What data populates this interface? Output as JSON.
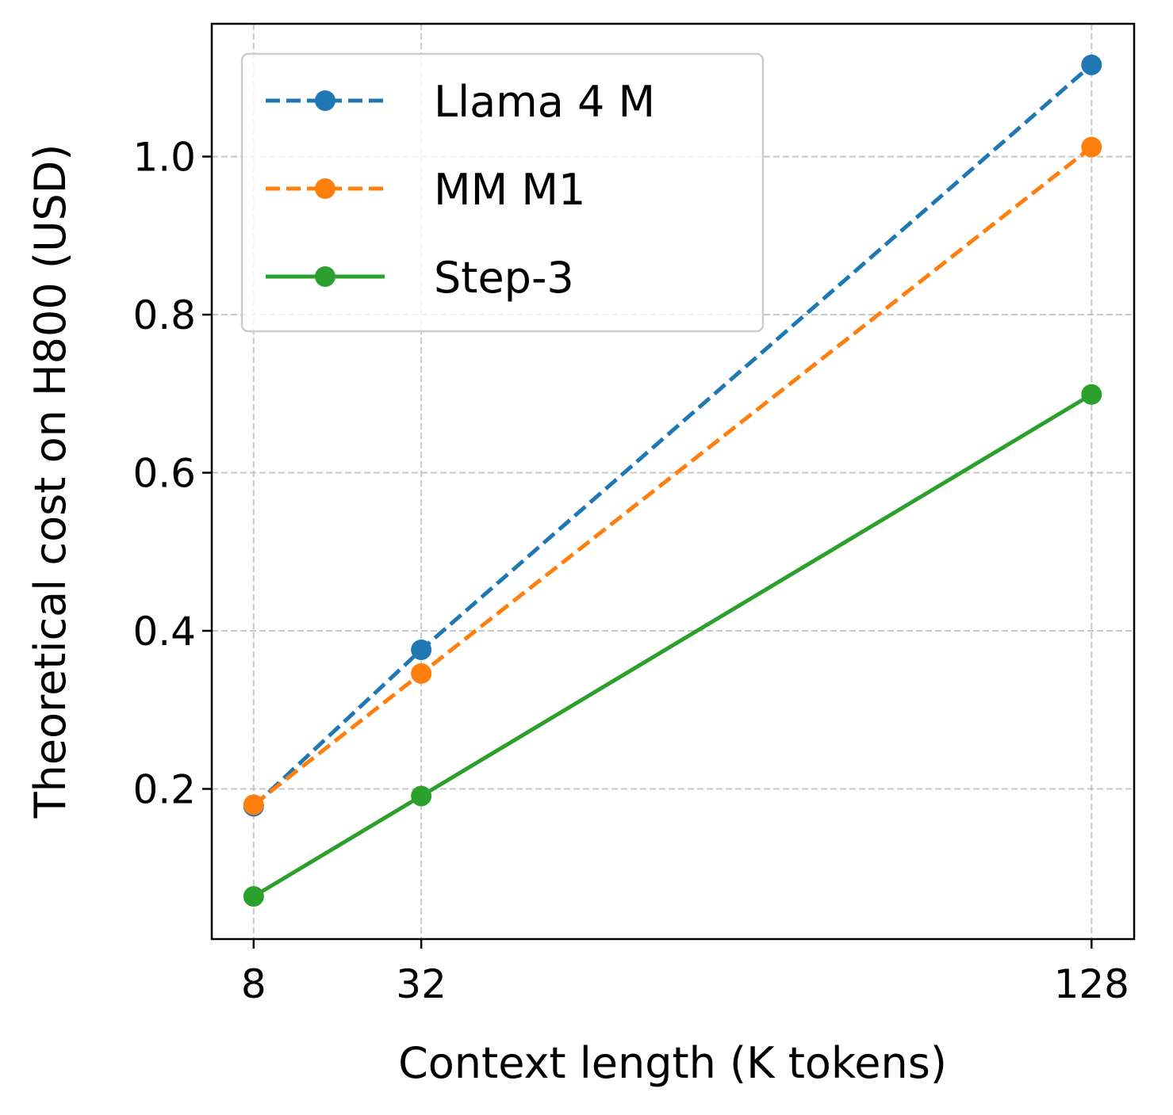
{
  "chart_data": {
    "type": "line",
    "title": "",
    "xlabel": "Context length (K tokens)",
    "ylabel": "Theoretical cost on H800 (USD)",
    "x": [
      8,
      32,
      128
    ],
    "x_tick_labels": [
      "8",
      "32",
      "128"
    ],
    "y_ticks": [
      0.2,
      0.4,
      0.6,
      0.8,
      1.0
    ],
    "y_tick_labels": [
      "0.2",
      "0.4",
      "0.6",
      "0.8",
      "1.0"
    ],
    "xlim": [
      2.0,
      134.1
    ],
    "ylim": [
      0.01,
      1.168
    ],
    "grid": true,
    "legend_position": "top-left",
    "series": [
      {
        "name": "Llama 4 M",
        "values": [
          0.178,
          0.376,
          1.116
        ],
        "color": "#1f77b4",
        "linestyle": "dashed",
        "marker": "circle"
      },
      {
        "name": "MM M1",
        "values": [
          0.18,
          0.346,
          1.012
        ],
        "color": "#ff7f0e",
        "linestyle": "dashed",
        "marker": "circle"
      },
      {
        "name": "Step-3",
        "values": [
          0.064,
          0.191,
          0.699
        ],
        "color": "#2ca02c",
        "linestyle": "solid",
        "marker": "circle"
      }
    ]
  }
}
